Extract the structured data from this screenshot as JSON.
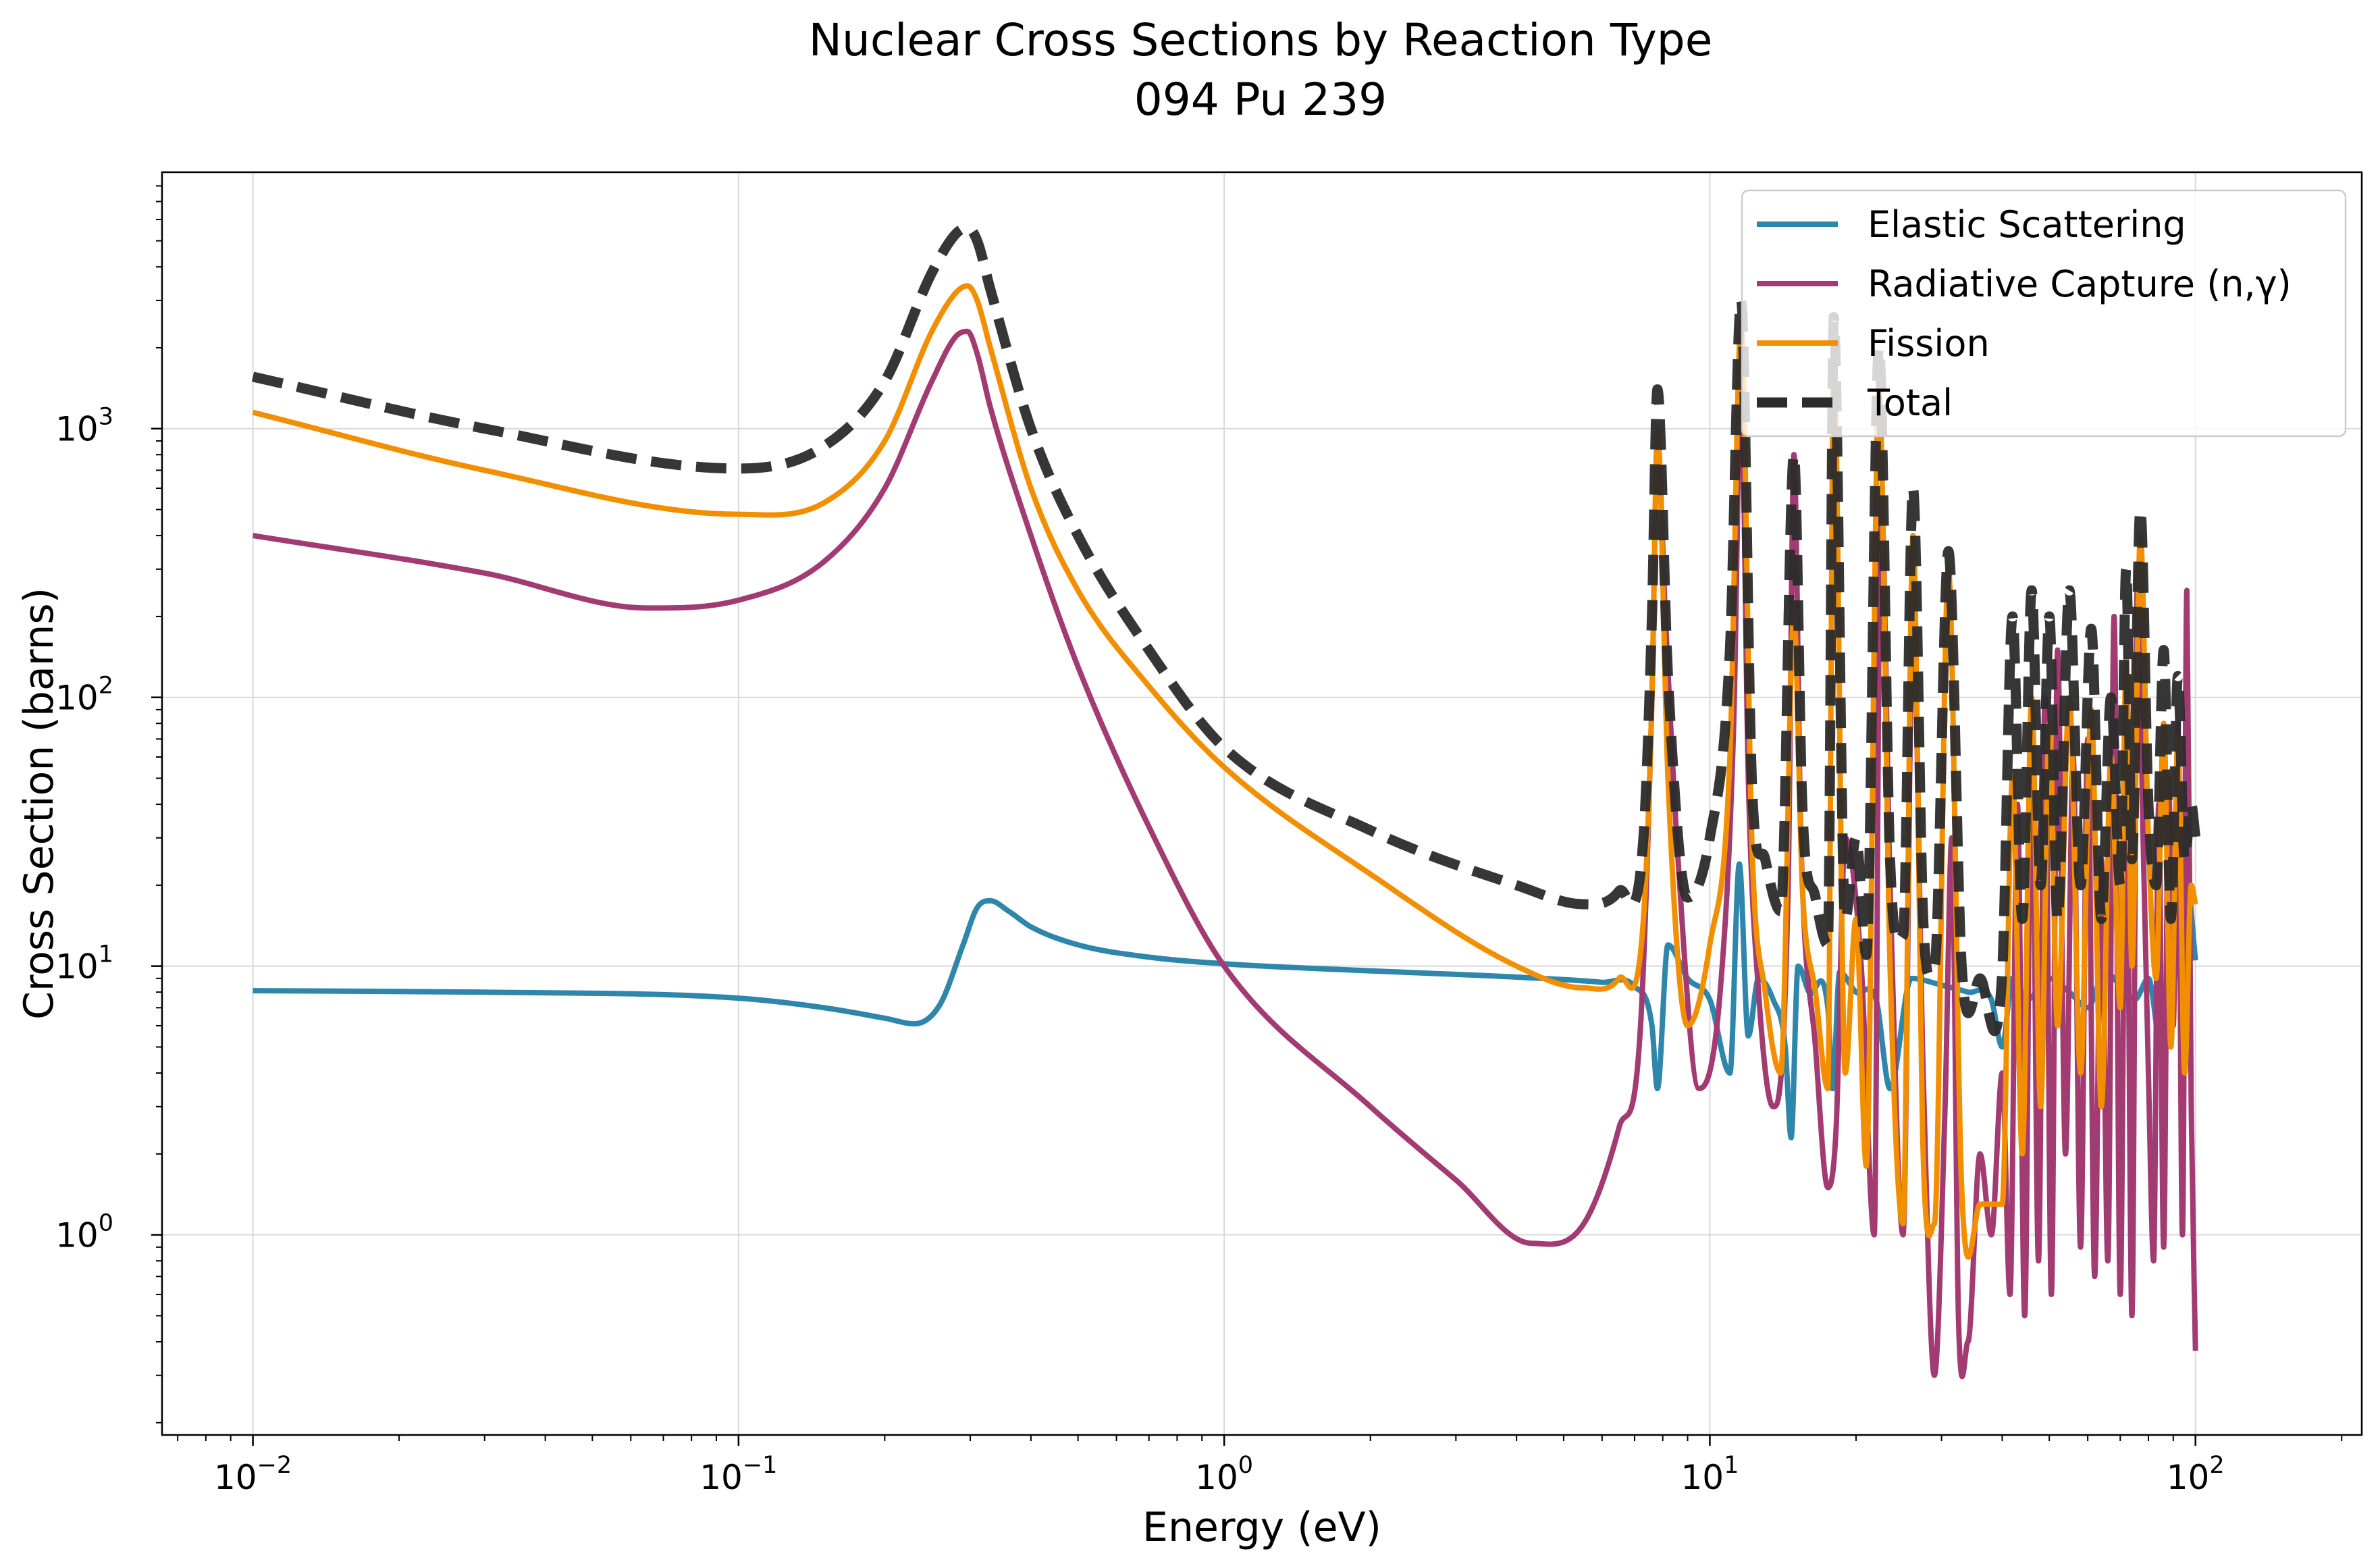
{
  "chart_data": {
    "type": "line",
    "title": "Nuclear Cross Sections by Reaction Type",
    "subtitle": "094 Pu 239",
    "xlabel": "Energy (eV)",
    "ylabel": "Cross Section (barns)",
    "xscale": "log",
    "yscale": "log",
    "xlim": [
      0.0065,
      220
    ],
    "ylim": [
      0.18,
      9000
    ],
    "xticks": [
      {
        "value": 0.01,
        "base": "10",
        "exp": "−2"
      },
      {
        "value": 0.1,
        "base": "10",
        "exp": "−1"
      },
      {
        "value": 1,
        "base": "10",
        "exp": "0"
      },
      {
        "value": 10,
        "base": "10",
        "exp": "1"
      },
      {
        "value": 100,
        "base": "10",
        "exp": "2"
      }
    ],
    "yticks": [
      {
        "value": 1,
        "base": "10",
        "exp": "0"
      },
      {
        "value": 10,
        "base": "10",
        "exp": "1"
      },
      {
        "value": 100,
        "base": "10",
        "exp": "2"
      },
      {
        "value": 1000,
        "base": "10",
        "exp": "3"
      }
    ],
    "grid": true,
    "legend_position": "top-right",
    "series": [
      {
        "name": "Elastic Scattering",
        "color": "#2e86ab",
        "dash": "solid",
        "x": [
          0.01,
          0.03,
          0.1,
          0.15,
          0.2,
          0.23,
          0.26,
          0.29,
          0.31,
          0.33,
          0.36,
          0.4,
          0.5,
          0.7,
          1.0,
          2.0,
          4.0,
          6.0,
          7.0,
          7.6,
          7.8,
          8.2,
          9.0,
          10.0,
          11.0,
          11.5,
          12.0,
          12.6,
          13.5,
          14.3,
          14.7,
          15.2,
          16.0,
          17.5,
          17.9,
          18.5,
          20.0,
          22.0,
          23.5,
          26.0,
          30.0,
          34.0,
          38.0,
          40.0,
          42.0,
          45.0,
          50.0,
          55.0,
          60.0,
          65.0,
          70.0,
          75.0,
          80.0,
          85.0,
          90.0,
          95.0,
          100.0
        ],
        "y": [
          8.1,
          8.0,
          7.6,
          7.0,
          6.4,
          6.1,
          7.2,
          12.0,
          16.5,
          17.5,
          16.0,
          14.0,
          12.0,
          10.8,
          10.2,
          9.6,
          9.1,
          8.7,
          8.4,
          6.0,
          3.5,
          12.0,
          9.0,
          7.5,
          4.0,
          24.0,
          5.5,
          9.0,
          7.5,
          5.0,
          2.3,
          10.0,
          8.0,
          7.0,
          3.5,
          9.5,
          8.0,
          7.5,
          3.5,
          9.0,
          8.5,
          8.0,
          7.5,
          5.0,
          9.0,
          7.5,
          9.0,
          8.0,
          7.0,
          9.5,
          8.5,
          7.5,
          9.0,
          5.0,
          8.0,
          25.0,
          10.5
        ]
      },
      {
        "name": "Radiative Capture (n,γ)",
        "color": "#a23b72",
        "dash": "solid",
        "x": [
          0.01,
          0.03,
          0.065,
          0.1,
          0.15,
          0.2,
          0.25,
          0.28,
          0.296,
          0.31,
          0.33,
          0.4,
          0.5,
          0.7,
          1.0,
          2.0,
          3.0,
          4.3,
          5.5,
          6.5,
          7.2,
          7.6,
          7.8,
          8.1,
          8.6,
          9.5,
          10.5,
          11.2,
          11.6,
          12.0,
          12.6,
          13.5,
          14.5,
          14.9,
          15.4,
          16.5,
          17.5,
          18.2,
          19.0,
          20.5,
          21.8,
          22.5,
          23.5,
          25.0,
          26.2,
          27.5,
          29.0,
          30.5,
          31.5,
          32.5,
          34.0,
          36.0,
          38.0,
          40.0,
          41.5,
          43.0,
          44.5,
          46.0,
          47.5,
          49.0,
          50.5,
          52.0,
          54.0,
          56.0,
          58.0,
          60.0,
          62.0,
          64.0,
          66.0,
          68.0,
          70.0,
          72.0,
          74.0,
          76.0,
          78.0,
          80.0,
          82.0,
          84.0,
          86.0,
          88.0,
          90.0,
          92.0,
          94.0,
          96.0,
          98.0,
          100.0
        ],
        "y": [
          400,
          290,
          215,
          230,
          320,
          600,
          1500,
          2200,
          2300,
          1900,
          1200,
          400,
          130,
          33,
          10,
          3.0,
          1.6,
          0.93,
          1.1,
          2.5,
          6.0,
          100,
          900,
          200,
          25,
          3.5,
          8.0,
          80,
          1500,
          50,
          8.0,
          3.0,
          20,
          800,
          30,
          5.0,
          1.5,
          2.5,
          30,
          10,
          1.0,
          600,
          20,
          1.0,
          200,
          4.0,
          0.3,
          3.0,
          30,
          0.5,
          0.4,
          2.0,
          1.0,
          4.0,
          0.6,
          40,
          0.5,
          80,
          0.8,
          100,
          0.6,
          150,
          2.0,
          60,
          0.9,
          70,
          0.7,
          25,
          0.8,
          200,
          0.6,
          60,
          0.5,
          300,
          30,
          4.0,
          0.8,
          40,
          0.9,
          50,
          6.0,
          80,
          1.0,
          250,
          3.0,
          0.37
        ]
      },
      {
        "name": "Fission",
        "color": "#f18f01",
        "dash": "solid",
        "x": [
          0.01,
          0.03,
          0.1,
          0.15,
          0.2,
          0.25,
          0.28,
          0.296,
          0.31,
          0.33,
          0.4,
          0.5,
          0.7,
          1.0,
          2.0,
          4.0,
          5.5,
          6.5,
          7.3,
          7.6,
          7.8,
          8.2,
          9.0,
          10.0,
          11.0,
          11.6,
          12.2,
          13.0,
          14.0,
          14.9,
          15.5,
          16.5,
          17.5,
          18.0,
          19.0,
          20.0,
          21.0,
          22.3,
          23.5,
          25.0,
          26.2,
          27.5,
          29.0,
          31.0,
          33.0,
          36.0,
          40.0,
          42.0,
          44.0,
          46.0,
          48.0,
          50.0,
          52.0,
          55.0,
          58.0,
          61.0,
          64.0,
          67.0,
          70.0,
          72.0,
          74.0,
          77.0,
          80.0,
          83.0,
          86.0,
          89.0,
          92.0,
          95.0,
          98.0,
          100.0
        ],
        "y": [
          1150,
          700,
          480,
          530,
          900,
          2300,
          3200,
          3400,
          3000,
          2000,
          600,
          250,
          110,
          55,
          22,
          10,
          8.3,
          9.0,
          15,
          100,
          1000,
          50,
          6.0,
          12,
          60,
          2500,
          30,
          8.0,
          4.0,
          200,
          20,
          8.0,
          3.5,
          2000,
          4.0,
          15,
          1.8,
          1400,
          10,
          1.1,
          400,
          2.0,
          1.1,
          300,
          1.5,
          1.3,
          1.3,
          50,
          2.0,
          100,
          3.0,
          80,
          6.0,
          100,
          4.0,
          90,
          3.0,
          60,
          7.0,
          140,
          10,
          400,
          30,
          9.0,
          80,
          5.0,
          70,
          4.0,
          20,
          17
        ]
      },
      {
        "name": "Total",
        "color": "#2b2b2b",
        "dash": "dashed",
        "x": [
          0.01,
          0.03,
          0.1,
          0.15,
          0.2,
          0.25,
          0.28,
          0.296,
          0.31,
          0.33,
          0.4,
          0.5,
          0.7,
          1.0,
          2.0,
          4.0,
          5.5,
          6.5,
          7.3,
          7.6,
          7.8,
          8.2,
          9.0,
          10.0,
          11.0,
          11.6,
          12.2,
          13.0,
          14.0,
          14.9,
          15.5,
          16.5,
          17.5,
          18.0,
          19.0,
          20.0,
          21.0,
          22.3,
          23.5,
          25.0,
          26.2,
          27.5,
          29.0,
          31.0,
          33.0,
          36.0,
          40.0,
          42.0,
          44.0,
          46.0,
          48.0,
          50.0,
          52.0,
          55.0,
          58.0,
          61.0,
          64.0,
          67.0,
          70.0,
          72.0,
          74.0,
          77.0,
          80.0,
          83.0,
          86.0,
          89.0,
          92.0,
          95.0,
          98.0,
          100.0
        ],
        "y": [
          1560,
          1000,
          710,
          860,
          1500,
          3800,
          5300,
          5600,
          5000,
          3300,
          1000,
          400,
          150,
          65,
          32,
          20,
          17,
          19,
          30,
          200,
          1400,
          120,
          18,
          30,
          150,
          3000,
          50,
          25,
          16,
          800,
          40,
          18,
          12,
          2600,
          15,
          30,
          11,
          2000,
          25,
          13,
          600,
          15,
          10,
          350,
          10,
          9.0,
          9.5,
          200,
          15,
          250,
          20,
          200,
          15,
          250,
          20,
          180,
          15,
          100,
          20,
          300,
          25,
          500,
          40,
          20,
          150,
          15,
          120,
          25,
          40,
          30
        ]
      }
    ]
  }
}
